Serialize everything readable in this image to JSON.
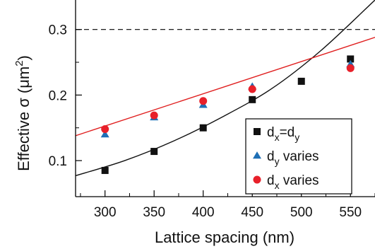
{
  "chart_data": {
    "type": "scatter",
    "xlabel": "Lattice spacing (nm)",
    "ylabel_main": "Effective σ (μm",
    "ylabel_sup": "2",
    "ylabel_close": ")",
    "xlim": [
      270,
      575
    ],
    "ylim": [
      0.045,
      0.345
    ],
    "xticks": [
      300,
      350,
      400,
      450,
      500,
      550
    ],
    "yticks": [
      0.1,
      0.2,
      0.3
    ],
    "ytick_labels": [
      "0.1",
      "0.2",
      "0.3"
    ],
    "grid": false,
    "legend_position": "bottom-right (inside)",
    "reference_line": {
      "y": 0.3,
      "style": "dashed",
      "color": "#000000"
    },
    "series": [
      {
        "key": "dxdy",
        "marker": "square",
        "color": "#111111",
        "label": {
          "main1": "d",
          "sub1": "x",
          "main2": "=d",
          "sub2": "y",
          "rest": ""
        },
        "x": [
          300,
          350,
          400,
          450,
          500,
          550
        ],
        "y": [
          0.085,
          0.114,
          0.15,
          0.193,
          0.221,
          0.255
        ]
      },
      {
        "key": "dy",
        "marker": "triangle",
        "color": "#1f6fb5",
        "label": {
          "main1": "d",
          "sub1": "y",
          "main2": "",
          "sub2": "",
          "rest": " varies"
        },
        "x": [
          300,
          350,
          400,
          450,
          550
        ],
        "y": [
          0.14,
          0.166,
          0.185,
          0.213,
          0.247
        ]
      },
      {
        "key": "dx",
        "marker": "circle",
        "color": "#e8202a",
        "label": {
          "main1": "d",
          "sub1": "x",
          "main2": "",
          "sub2": "",
          "rest": " varies"
        },
        "x": [
          300,
          350,
          400,
          450,
          550
        ],
        "y": [
          0.148,
          0.169,
          0.191,
          0.209,
          0.241
        ]
      }
    ],
    "fit_curves": [
      {
        "key": "black-fit",
        "color": "#111111",
        "x": [
          270,
          320,
          370,
          420,
          470,
          520,
          575
        ],
        "y": [
          0.077,
          0.1,
          0.13,
          0.167,
          0.21,
          0.268,
          0.345
        ]
      },
      {
        "key": "red-fit",
        "color": "#e02020",
        "x": [
          270,
          575
        ],
        "y": [
          0.138,
          0.288
        ]
      }
    ]
  }
}
